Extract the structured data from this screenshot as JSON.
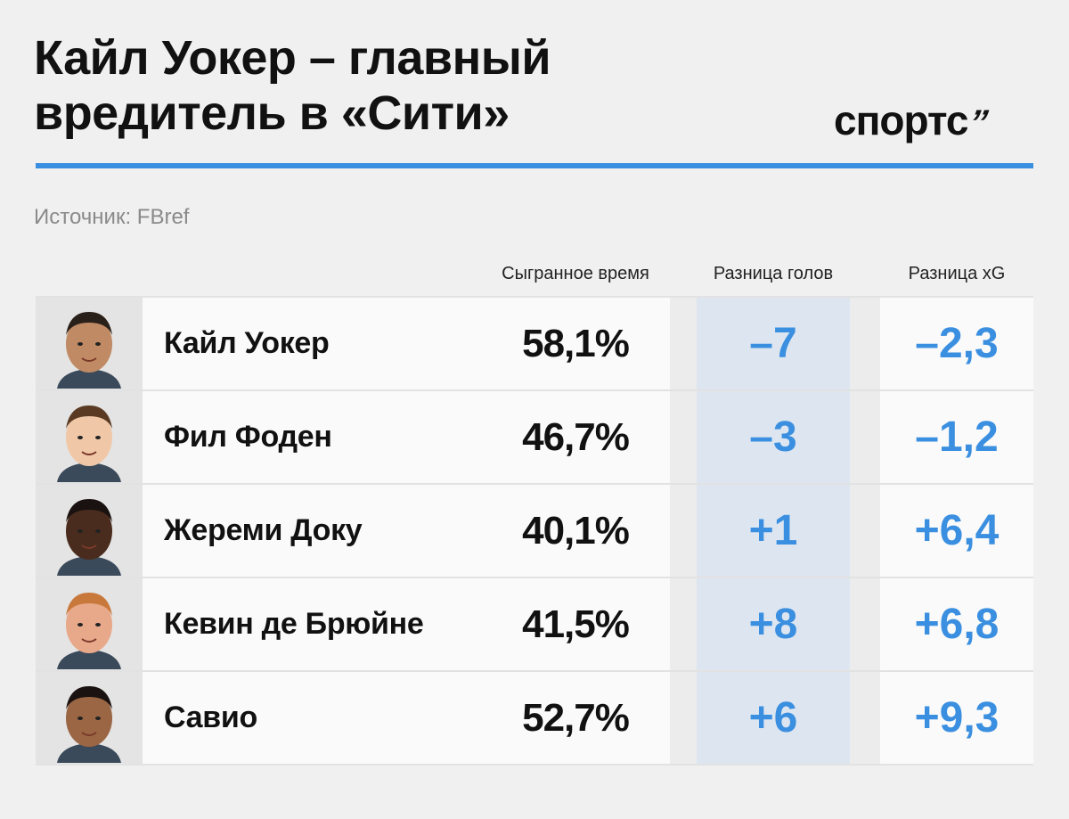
{
  "header": {
    "title_line1": "Кайл Уокер – главный",
    "title_line2": "вредитель в «Сити»",
    "logo_text": "спортс",
    "logo_mark": "’’"
  },
  "source": "Источник: FBref",
  "columns": {
    "time": "Сыгранное время",
    "goals": "Разница голов",
    "xg": "Разница xG"
  },
  "accent_color": "#3b8fe0",
  "players": [
    {
      "name": "Кайл Уокер",
      "time": "58,1%",
      "goals": "–7",
      "xg": "–2,3",
      "skin": "#c08a64",
      "hair": "#2a201a"
    },
    {
      "name": "Фил Фоден",
      "time": "46,7%",
      "goals": "–3",
      "xg": "–1,2",
      "skin": "#f0c8a8",
      "hair": "#5a3a22"
    },
    {
      "name": "Жереми Доку",
      "time": "40,1%",
      "goals": "+1",
      "xg": "+6,4",
      "skin": "#4a2c1e",
      "hair": "#1a1210"
    },
    {
      "name": "Кевин де Брюйне",
      "time": "41,5%",
      "goals": "+8",
      "xg": "+6,8",
      "skin": "#e8a88a",
      "hair": "#c8783a"
    },
    {
      "name": "Савио",
      "time": "52,7%",
      "goals": "+6",
      "xg": "+9,3",
      "skin": "#9a6644",
      "hair": "#1a1210"
    }
  ]
}
